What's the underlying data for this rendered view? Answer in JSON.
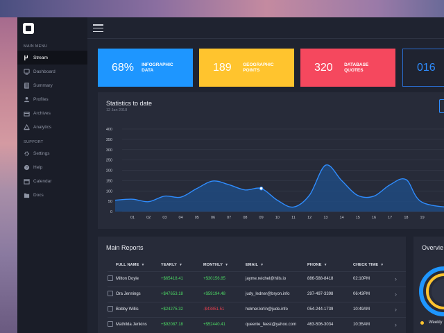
{
  "sidebar": {
    "main_menu_label": "MAIN MENU",
    "main_items": [
      {
        "label": "Stream",
        "icon": "stream-icon",
        "active": true
      },
      {
        "label": "Dashboard",
        "icon": "dashboard-icon"
      },
      {
        "label": "Summary",
        "icon": "summary-icon"
      },
      {
        "label": "Profiles",
        "icon": "profile-icon"
      },
      {
        "label": "Archives",
        "icon": "archive-icon"
      },
      {
        "label": "Analytics",
        "icon": "analytics-icon"
      }
    ],
    "support_label": "SUPPORT",
    "support_items": [
      {
        "label": "Settings",
        "icon": "gear-icon"
      },
      {
        "label": "Help",
        "icon": "help-icon"
      },
      {
        "label": "Calendar",
        "icon": "calendar-icon"
      },
      {
        "label": "Docs",
        "icon": "folder-icon"
      }
    ]
  },
  "cards": [
    {
      "value": "68%",
      "label_line1": "INFOGRAPHIC",
      "label_line2": "DATA",
      "color": "#1e96ff"
    },
    {
      "value": "189",
      "label_line1": "GEOGRAPHIC",
      "label_line2": "POINTS",
      "color": "#ffc42e"
    },
    {
      "value": "320",
      "label_line1": "DATABASE",
      "label_line2": "QUOTES",
      "color": "#f5485e"
    },
    {
      "value": "016",
      "label_line1": "",
      "label_line2": "",
      "color": "#1f2330"
    }
  ],
  "stats": {
    "title": "Statistics to date",
    "date": "12 Jan 2018"
  },
  "chart_data": {
    "type": "area",
    "title": "",
    "xlabel": "",
    "ylabel": "",
    "x": [
      "01",
      "02",
      "03",
      "04",
      "05",
      "06",
      "07",
      "08",
      "09",
      "10",
      "11",
      "12",
      "13",
      "14",
      "15",
      "16",
      "17",
      "18",
      "19"
    ],
    "series": [
      {
        "values": [
          60,
          48,
          75,
          70,
          112,
          148,
          130,
          105,
          112,
          55,
          22,
          80,
          225,
          150,
          78,
          75,
          130,
          155,
          45
        ]
      }
    ],
    "highlight_point": {
      "x": "09",
      "y": 112
    },
    "y_ticks": [
      0,
      50,
      100,
      150,
      200,
      250,
      300,
      350,
      400
    ],
    "ylim": [
      0,
      400
    ],
    "grid": true,
    "colors": {
      "line": "#2f8dff",
      "fill": "#1f4f8a",
      "point": "#ffffff"
    }
  },
  "reports": {
    "title": "Main Reports",
    "columns": [
      "FULL NAME",
      "YEARLY",
      "MONTHLY",
      "EMAIL",
      "PHONE",
      "CHECK TIME"
    ],
    "rows": [
      {
        "name": "Milton Doyle",
        "yearly": "+$65418.41",
        "monthly": "+$30156.85",
        "monthly_sign": "pos",
        "email": "jayme.reichel@hills.io",
        "phone": "886-588-8418",
        "time": "02:10PM"
      },
      {
        "name": "Ora Jennings",
        "yearly": "+$47653.18",
        "monthly": "+$59194.48",
        "monthly_sign": "pos",
        "email": "judy_ledner@bryon.info",
        "phone": "297-497-3398",
        "time": "06:43PM"
      },
      {
        "name": "Bobby Willis",
        "yearly": "+$24275.32",
        "monthly": "-$43851.51",
        "monthly_sign": "neg",
        "email": "helmer.kirlin@jude.info",
        "phone": "054-244-1739",
        "time": "10:49AM"
      },
      {
        "name": "Mathilda Jenkins",
        "yearly": "+$92087.18",
        "monthly": "+$52440.41",
        "monthly_sign": "pos",
        "email": "queenie_feest@yahoo.com",
        "phone": "463-506-3034",
        "time": "10:35AM"
      }
    ]
  },
  "overview": {
    "title": "Overvie",
    "legend": "Weekly",
    "legend_color": "#ffc42e"
  }
}
